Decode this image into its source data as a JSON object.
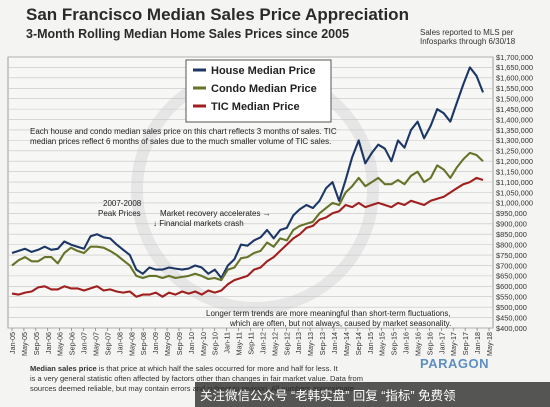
{
  "title": "San Francisco Median Sales Price Appreciation",
  "subtitle": "3-Month Rolling Median Home Sales Prices since 2005",
  "source_note": "Sales reported to MLS per Infosparks through 6/30/18",
  "annotations": {
    "note_line1": "Each house and condo median sales price on this chart reflects 3 months of sales. TIC",
    "note_line2": "median prices reflect 6 months of sales due to the much smaller volume of TIC sales.",
    "peak_line1": "2007-2008",
    "peak_line2": "Peak Prices",
    "recovery": "Market recovery accelerates →",
    "crash": "↓ Financial markets crash",
    "trend_line1": "Longer term trends are more meaningful than short-term fluctuations,",
    "trend_line2": "which are often, but not always, caused by market seasonality."
  },
  "footer": {
    "line1_bold": "Median sales price",
    "line1_rest": "is that price at which half the sales occurred for more and half for less. It",
    "line2": "is a very general statistic often affected by factors other than changes in fair market value. Data from",
    "line3": "sources deemed reliable, but may contain errors and subject to revision. All numbers approximate."
  },
  "overlay_text": "关注微信公众号 “老韩实盘” 回复 “指标” 免费领",
  "watermark": "PARAGON",
  "colors": {
    "house": "#1c3766",
    "condo": "#66742a",
    "tic": "#a01f1f",
    "grid": "#c4c4c4"
  },
  "chart_data": {
    "type": "line",
    "title": "San Francisco Median Sales Price Appreciation",
    "subtitle": "3-Month Rolling Median Home Sales Prices since 2005",
    "xlabel": "",
    "ylabel": "",
    "ylim": [
      400000,
      1700000
    ],
    "y_ticks": [
      "$400,000",
      "$450,000",
      "$500,000",
      "$550,000",
      "$600,000",
      "$650,000",
      "$700,000",
      "$750,000",
      "$800,000",
      "$850,000",
      "$900,000",
      "$950,000",
      "$1,000,000",
      "$1,050,000",
      "$1,100,000",
      "$1,150,000",
      "$1,200,000",
      "$1,250,000",
      "$1,300,000",
      "$1,350,000",
      "$1,400,000",
      "$1,450,000",
      "$1,500,000",
      "$1,550,000",
      "$1,600,000",
      "$1,650,000",
      "$1,700,000"
    ],
    "x_ticks": [
      "Jan-05",
      "May-05",
      "Sep-05",
      "Jan-06",
      "May-06",
      "Sep-06",
      "Jan-07",
      "May-07",
      "Sep-07",
      "Jan-08",
      "May-08",
      "Sep-08",
      "Jan-09",
      "May-09",
      "Sep-09",
      "Jan-10",
      "May-10",
      "Sep-10",
      "Jan-11",
      "May-11",
      "Sep-11",
      "Jan-12",
      "May-12",
      "Sep-12",
      "Jan-13",
      "May-13",
      "Sep-13",
      "Jan-14",
      "May-14",
      "Sep-14",
      "Jan-15",
      "May-15",
      "Sep-15",
      "Jan-16",
      "May-16",
      "Sep-16",
      "Jan-17",
      "May-17",
      "Sep-17",
      "Jan-18",
      "May-18"
    ],
    "legend": [
      "House Median Price",
      "Condo Median Price",
      "TIC Median Price"
    ],
    "legend_position": "top-left",
    "grid": true,
    "series": [
      {
        "name": "House Median Price",
        "values": [
          760000,
          770000,
          780000,
          765000,
          775000,
          790000,
          775000,
          780000,
          815000,
          800000,
          790000,
          780000,
          840000,
          850000,
          835000,
          830000,
          800000,
          775000,
          750000,
          680000,
          660000,
          690000,
          680000,
          680000,
          690000,
          685000,
          680000,
          685000,
          700000,
          690000,
          660000,
          680000,
          640000,
          700000,
          730000,
          800000,
          795000,
          820000,
          835000,
          870000,
          830000,
          870000,
          880000,
          940000,
          970000,
          990000,
          975000,
          1010000,
          1070000,
          1100000,
          1010000,
          1110000,
          1220000,
          1300000,
          1190000,
          1240000,
          1280000,
          1260000,
          1200000,
          1300000,
          1265000,
          1350000,
          1390000,
          1310000,
          1370000,
          1450000,
          1430000,
          1390000,
          1480000,
          1570000,
          1650000,
          1610000,
          1530000
        ]
      },
      {
        "name": "Condo Median Price",
        "values": [
          700000,
          725000,
          740000,
          720000,
          720000,
          740000,
          740000,
          710000,
          760000,
          785000,
          770000,
          760000,
          790000,
          790000,
          785000,
          770000,
          750000,
          725000,
          700000,
          650000,
          640000,
          650000,
          650000,
          640000,
          650000,
          640000,
          645000,
          650000,
          660000,
          650000,
          635000,
          640000,
          630000,
          680000,
          690000,
          735000,
          740000,
          760000,
          770000,
          810000,
          790000,
          830000,
          820000,
          870000,
          890000,
          900000,
          910000,
          950000,
          975000,
          1000000,
          990000,
          1050000,
          1080000,
          1120000,
          1080000,
          1100000,
          1120000,
          1090000,
          1090000,
          1110000,
          1090000,
          1130000,
          1150000,
          1100000,
          1120000,
          1180000,
          1160000,
          1120000,
          1170000,
          1210000,
          1240000,
          1230000,
          1200000
        ]
      },
      {
        "name": "TIC Median Price",
        "values": [
          565000,
          560000,
          570000,
          575000,
          595000,
          600000,
          585000,
          585000,
          600000,
          590000,
          590000,
          580000,
          590000,
          600000,
          580000,
          585000,
          575000,
          570000,
          575000,
          550000,
          560000,
          560000,
          570000,
          550000,
          570000,
          560000,
          575000,
          565000,
          575000,
          560000,
          580000,
          570000,
          580000,
          610000,
          630000,
          640000,
          650000,
          680000,
          690000,
          720000,
          740000,
          770000,
          800000,
          830000,
          850000,
          880000,
          890000,
          920000,
          930000,
          950000,
          960000,
          990000,
          980000,
          1000000,
          980000,
          990000,
          1000000,
          990000,
          980000,
          1000000,
          990000,
          1010000,
          1000000,
          990000,
          1010000,
          1020000,
          1030000,
          1050000,
          1070000,
          1090000,
          1100000,
          1120000,
          1110000
        ]
      }
    ]
  }
}
